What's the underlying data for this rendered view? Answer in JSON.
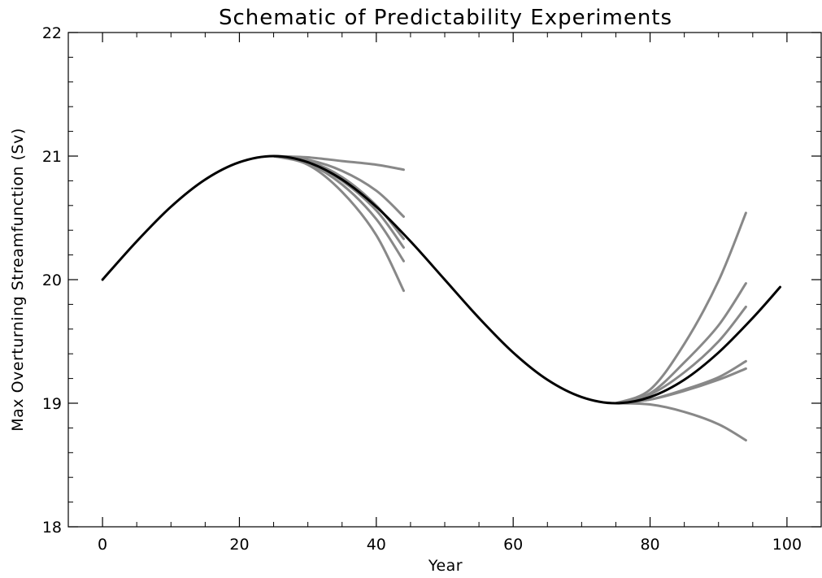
{
  "chart_data": {
    "type": "line",
    "title": "Schematic of Predictability Experiments",
    "xlabel": "Year",
    "ylabel": "Max Overturning Streamfunction (Sv)",
    "xlim": [
      -5,
      105
    ],
    "ylim": [
      18,
      22
    ],
    "xticks": [
      0,
      20,
      40,
      60,
      80,
      100
    ],
    "xtick_labels": [
      "0",
      "20",
      "40",
      "60",
      "80",
      "100"
    ],
    "yticks": [
      18,
      19,
      20,
      21,
      22
    ],
    "ytick_labels": [
      "18",
      "19",
      "20",
      "21",
      "22"
    ],
    "grid": false,
    "colors": {
      "control": "#000000",
      "ensemble": "#888888"
    },
    "control": {
      "name": "",
      "x": [
        0,
        5,
        10,
        15,
        20,
        25,
        30,
        35,
        40,
        45,
        50,
        55,
        60,
        65,
        70,
        75,
        80,
        85,
        90,
        95,
        99
      ],
      "y": [
        20.0,
        20.31,
        20.59,
        20.81,
        20.95,
        21.0,
        20.95,
        20.81,
        20.59,
        20.31,
        20.0,
        19.69,
        19.41,
        19.19,
        19.05,
        19.0,
        19.05,
        19.19,
        19.41,
        19.69,
        19.94
      ]
    },
    "ensembles": [
      {
        "start_x": 25,
        "start_y": 21.0,
        "members": [
          {
            "x": [
              25,
              30,
              35,
              40,
              44
            ],
            "y": [
              21.0,
              20.99,
              20.96,
              20.93,
              20.89
            ]
          },
          {
            "x": [
              25,
              30,
              35,
              40,
              44
            ],
            "y": [
              21.0,
              20.97,
              20.88,
              20.72,
              20.51
            ]
          },
          {
            "x": [
              25,
              30,
              35,
              40,
              44
            ],
            "y": [
              21.0,
              20.96,
              20.83,
              20.6,
              20.33
            ]
          },
          {
            "x": [
              25,
              30,
              35,
              40,
              44
            ],
            "y": [
              21.0,
              20.95,
              20.8,
              20.56,
              20.26
            ]
          },
          {
            "x": [
              25,
              30,
              35,
              40,
              44
            ],
            "y": [
              21.0,
              20.94,
              20.77,
              20.49,
              20.15
            ]
          },
          {
            "x": [
              25,
              30,
              35,
              40,
              44
            ],
            "y": [
              21.0,
              20.93,
              20.71,
              20.36,
              19.91
            ]
          }
        ]
      },
      {
        "start_x": 75,
        "start_y": 19.0,
        "members": [
          {
            "x": [
              75,
              80,
              85,
              90,
              94
            ],
            "y": [
              19.0,
              18.99,
              18.93,
              18.83,
              18.7
            ]
          },
          {
            "x": [
              75,
              80,
              85,
              90,
              94
            ],
            "y": [
              19.0,
              19.03,
              19.1,
              19.19,
              19.28
            ]
          },
          {
            "x": [
              75,
              80,
              85,
              90,
              94
            ],
            "y": [
              19.0,
              19.03,
              19.11,
              19.21,
              19.34
            ]
          },
          {
            "x": [
              75,
              80,
              85,
              90,
              94
            ],
            "y": [
              19.0,
              19.07,
              19.25,
              19.5,
              19.78
            ]
          },
          {
            "x": [
              75,
              80,
              85,
              90,
              94
            ],
            "y": [
              19.0,
              19.08,
              19.33,
              19.63,
              19.97
            ]
          },
          {
            "x": [
              75,
              80,
              85,
              90,
              94
            ],
            "y": [
              19.0,
              19.11,
              19.48,
              19.99,
              20.54
            ]
          }
        ]
      }
    ]
  }
}
